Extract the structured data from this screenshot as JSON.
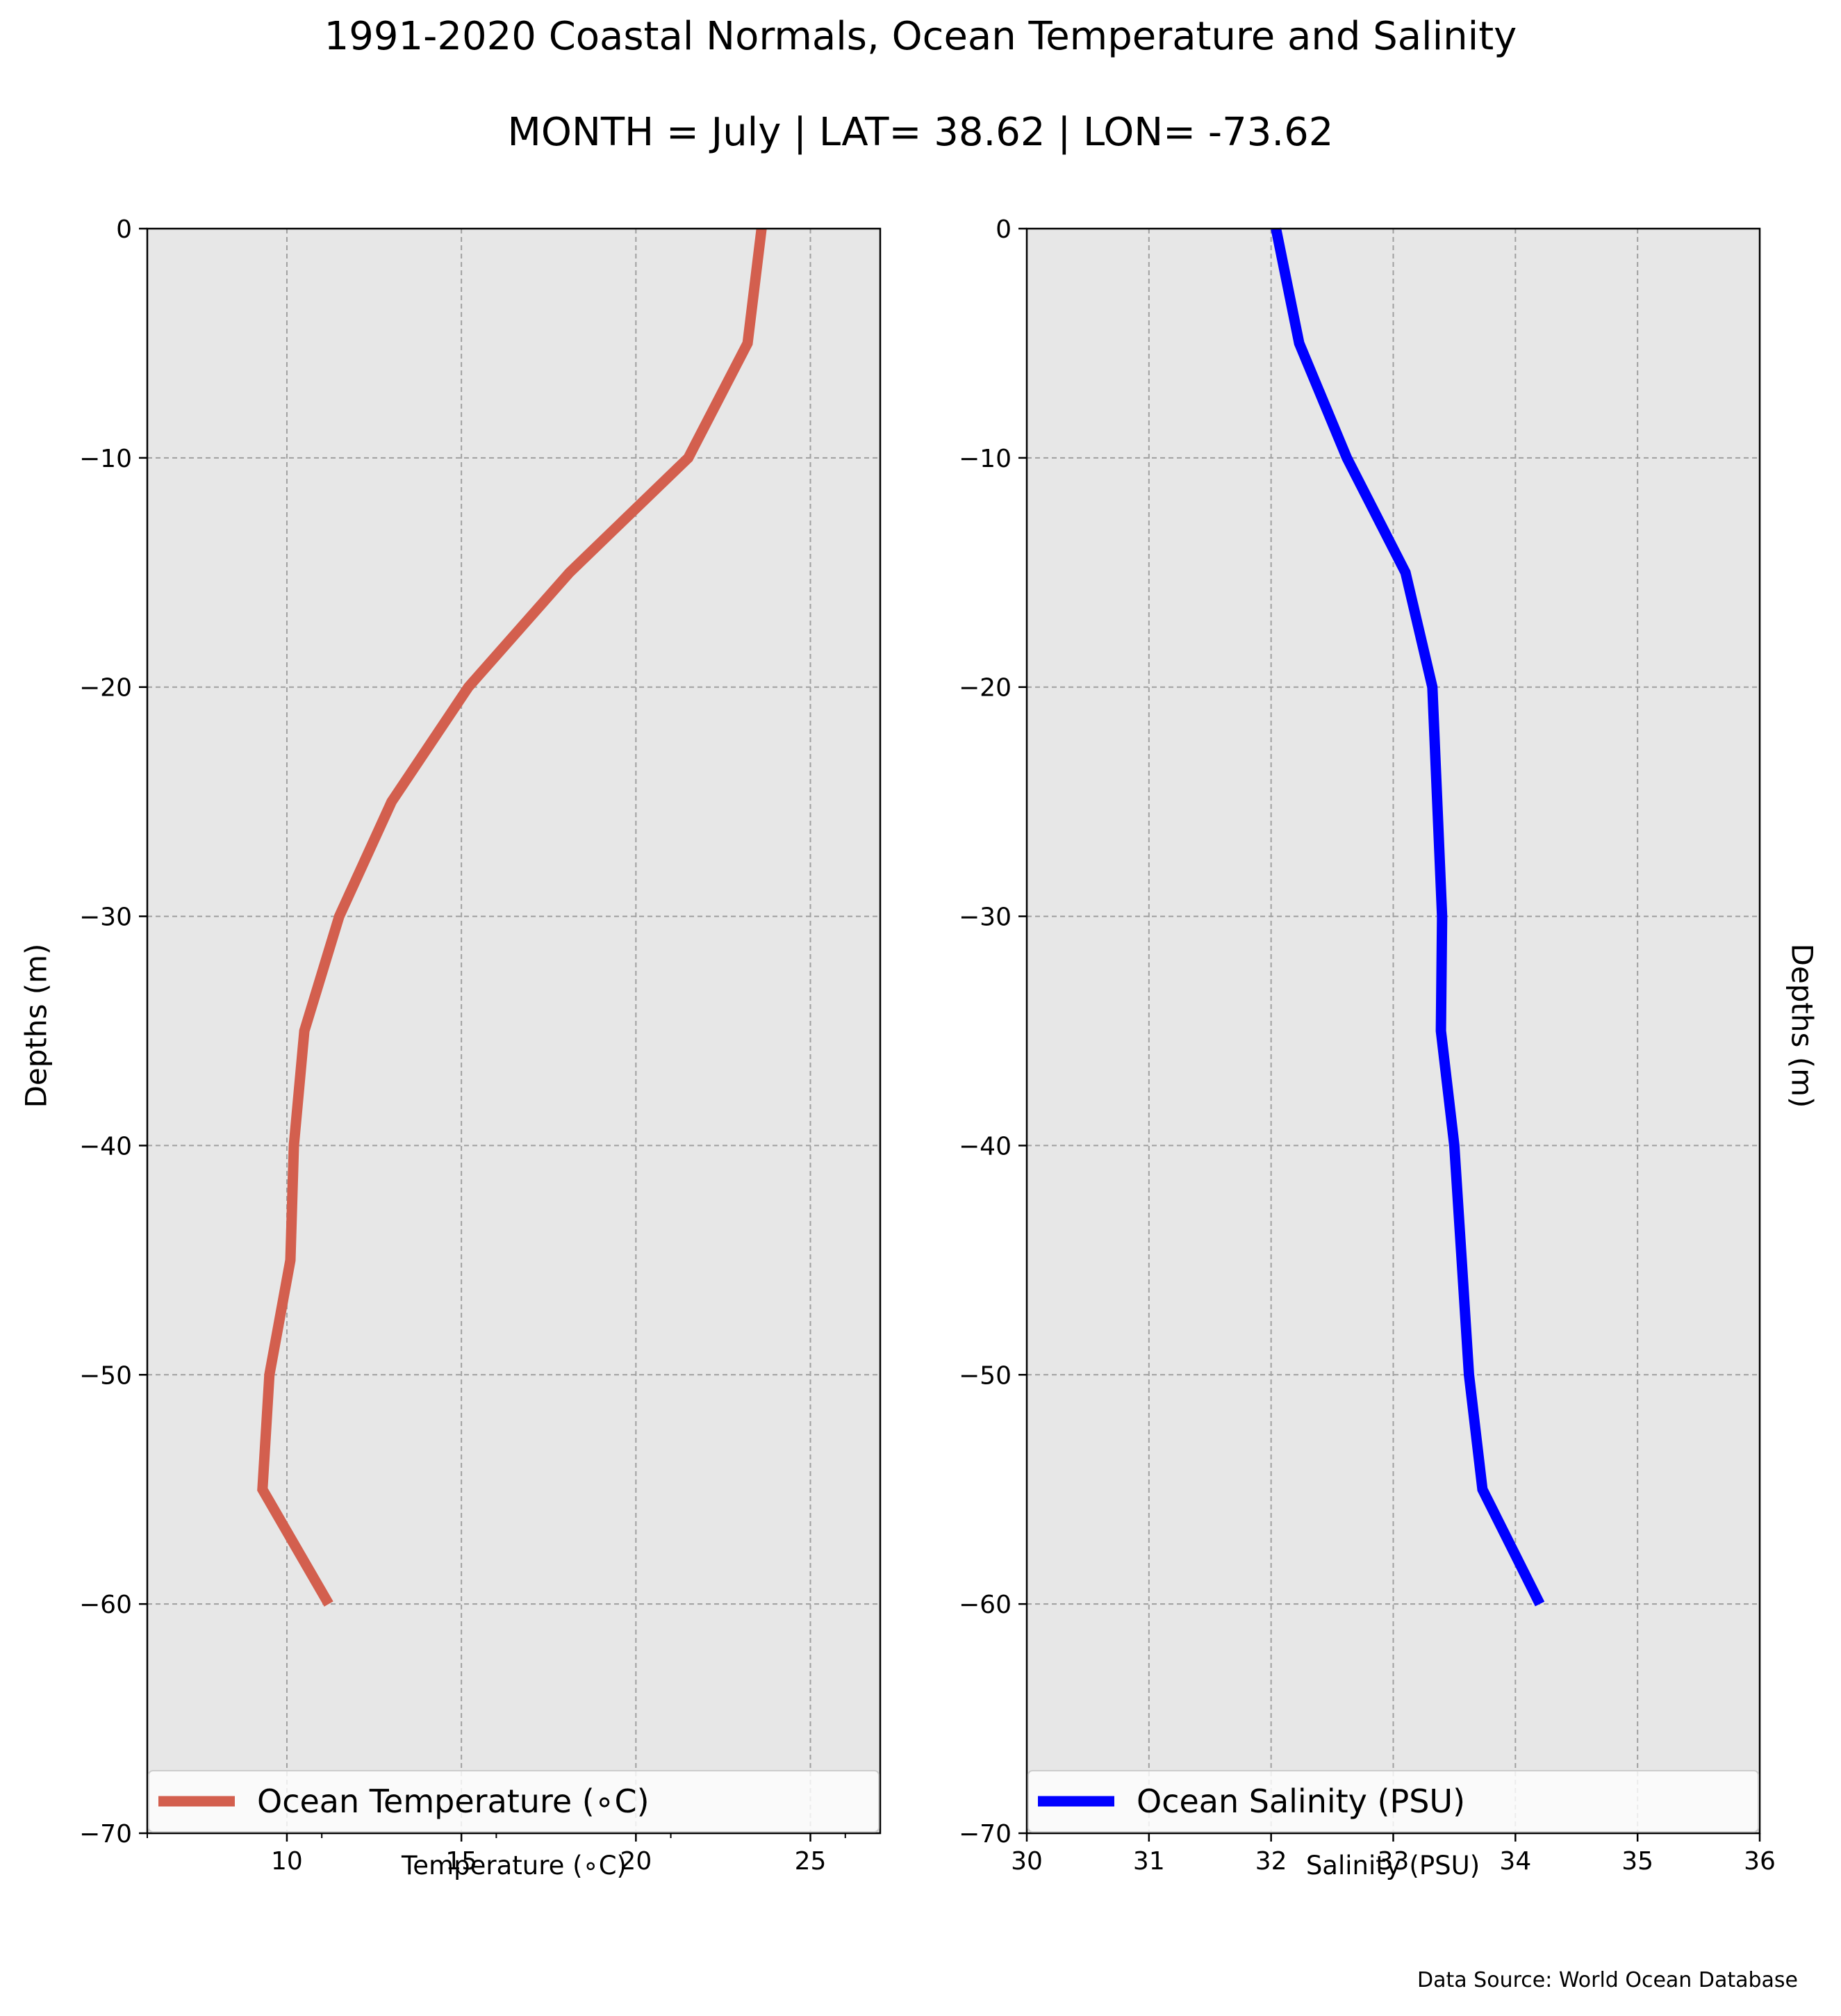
{
  "title": "1991-2020 Coastal Normals, Ocean Temperature and Salinity",
  "subtitle": "MONTH = July | LAT= 38.62 | LON= -73.62",
  "source": "Data Source: World Ocean Database",
  "chart_data": [
    {
      "type": "line",
      "xlabel": "Temperature ($^\\circ$C)",
      "xlabel_display": "Temperature (∘C)",
      "ylabel": "Depths (m)",
      "xlim": [
        6,
        27
      ],
      "ylim": [
        -70,
        0
      ],
      "xticks": [
        10,
        15,
        20,
        25
      ],
      "xtick_labels": [
        "10",
        "15",
        "20",
        "25"
      ],
      "xminor_ticks": [
        6,
        11,
        16,
        21,
        26
      ],
      "yticks": [
        0,
        -10,
        -20,
        -30,
        -40,
        -50,
        -60,
        -70
      ],
      "ytick_labels": [
        "0",
        "−10",
        "−20",
        "−30",
        "−40",
        "−50",
        "−60",
        "−70"
      ],
      "grid": true,
      "legend_position": "lower center",
      "series": [
        {
          "name": "Ocean Temperature ($^\\circ$C)",
          "name_display": "Ocean Temperature (∘C)",
          "color": "#d35f4e",
          "x": [
            23.6,
            23.2,
            21.5,
            18.1,
            15.2,
            13.0,
            11.5,
            10.5,
            10.2,
            10.1,
            9.5,
            9.3,
            11.2
          ],
          "y": [
            0,
            -5,
            -10,
            -15,
            -20,
            -25,
            -30,
            -35,
            -40,
            -45,
            -50,
            -55,
            -60
          ]
        }
      ]
    },
    {
      "type": "line",
      "xlabel": "Salinity (PSU)",
      "ylabel": "Depths (m)",
      "xlim": [
        30,
        36
      ],
      "ylim": [
        -70,
        0
      ],
      "xticks": [
        30,
        31,
        32,
        33,
        34,
        35,
        36
      ],
      "xtick_labels": [
        "30",
        "31",
        "32",
        "33",
        "34",
        "35",
        "36"
      ],
      "yticks": [
        0,
        -10,
        -20,
        -30,
        -40,
        -50,
        -60,
        -70
      ],
      "ytick_labels": [
        "0",
        "−10",
        "−20",
        "−30",
        "−40",
        "−50",
        "−60",
        "−70"
      ],
      "grid": true,
      "legend_position": "lower center",
      "series": [
        {
          "name": "Ocean Salinity (PSU)",
          "color": "#0000ff",
          "x": [
            32.04,
            32.23,
            32.62,
            33.1,
            33.32,
            33.36,
            33.4,
            33.39,
            33.5,
            33.56,
            33.62,
            33.73,
            34.2
          ],
          "y": [
            0,
            -5,
            -10,
            -15,
            -20,
            -25,
            -30,
            -35,
            -40,
            -45,
            -50,
            -55,
            -60
          ]
        }
      ]
    }
  ]
}
